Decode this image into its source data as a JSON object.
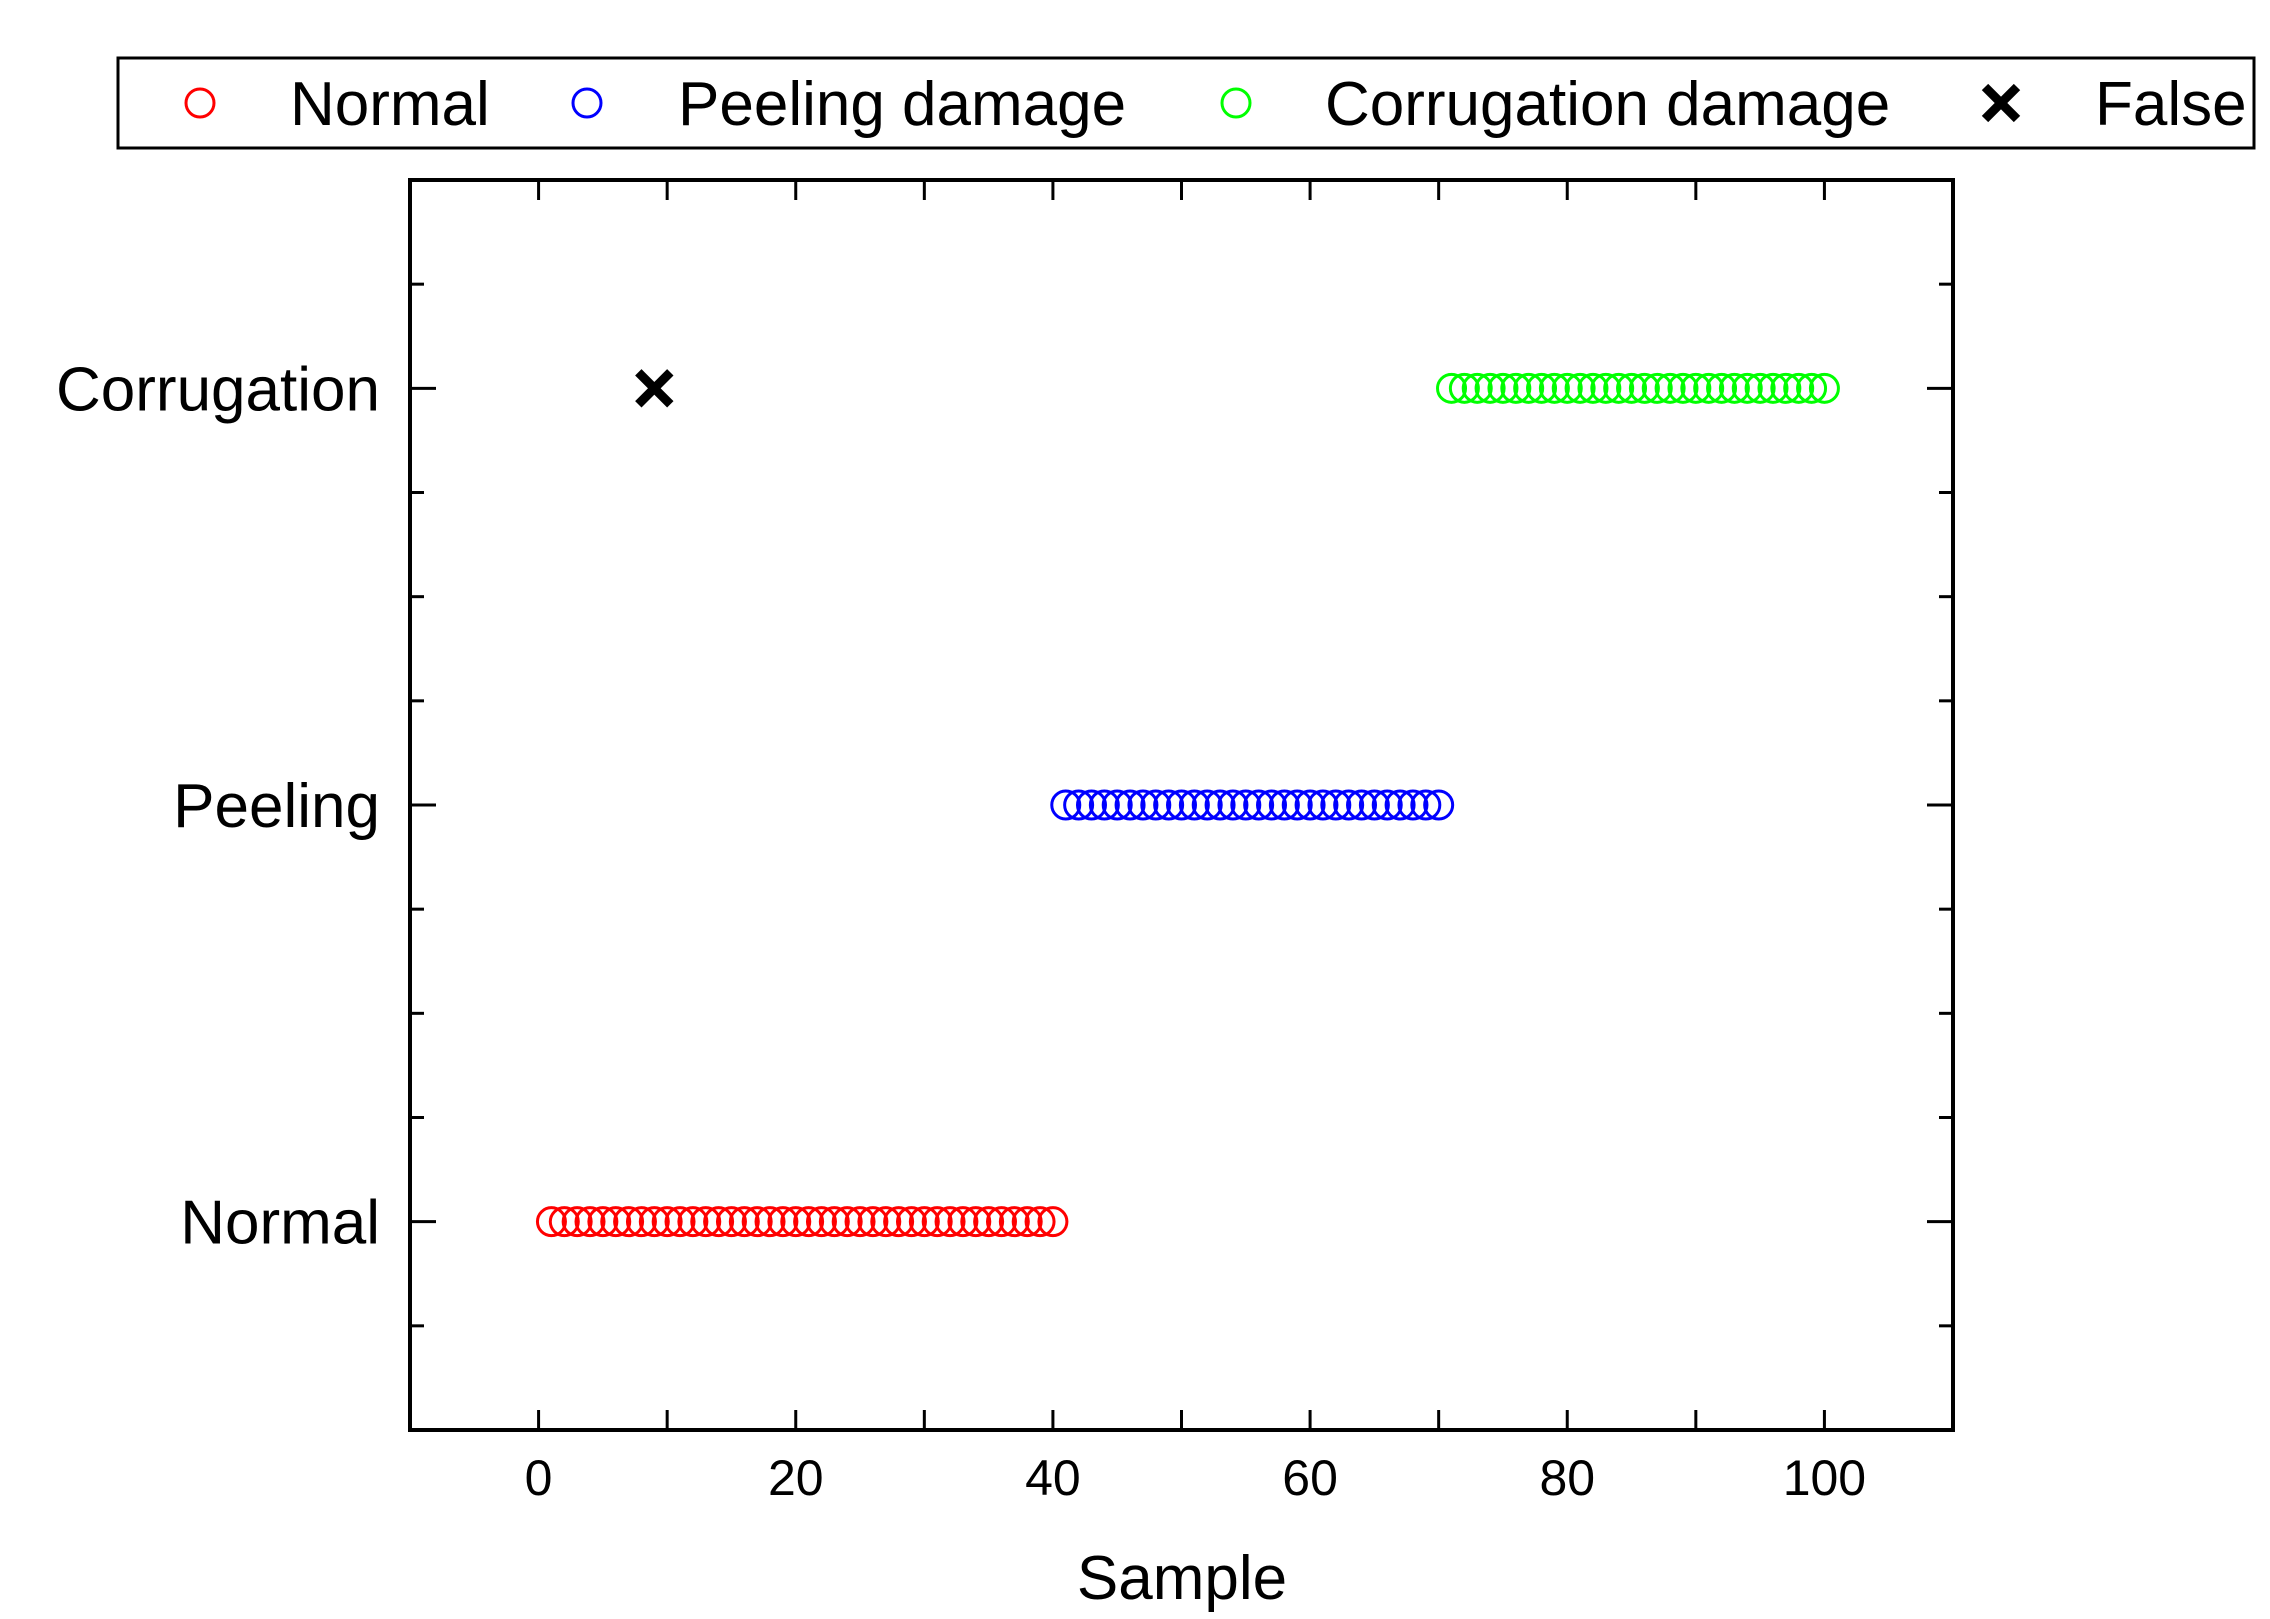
{
  "chart_data": {
    "type": "scatter",
    "title": "",
    "xlabel": "Sample",
    "ylabel": "",
    "xlim": [
      -10,
      110
    ],
    "ylim": [
      -0.5,
      2.5
    ],
    "x_ticks": [
      0,
      20,
      40,
      60,
      80,
      100
    ],
    "y_categories": [
      "Normal",
      "Peeling",
      "Corrugation"
    ],
    "legend_position": "top, outside plot",
    "series": [
      {
        "name": "Normal",
        "marker": "open-circle",
        "color": "#ff0000",
        "y": "Normal",
        "x": [
          1,
          2,
          3,
          4,
          5,
          6,
          7,
          8,
          9,
          10,
          11,
          12,
          13,
          14,
          15,
          16,
          17,
          18,
          19,
          20,
          21,
          22,
          23,
          24,
          25,
          26,
          27,
          28,
          29,
          30,
          31,
          32,
          33,
          34,
          35,
          36,
          37,
          38,
          39,
          40
        ]
      },
      {
        "name": "Peeling damage",
        "marker": "open-circle",
        "color": "#0000ff",
        "y": "Peeling",
        "x": [
          41,
          42,
          43,
          44,
          45,
          46,
          47,
          48,
          49,
          50,
          51,
          52,
          53,
          54,
          55,
          56,
          57,
          58,
          59,
          60,
          61,
          62,
          63,
          64,
          65,
          66,
          67,
          68,
          69,
          70
        ]
      },
      {
        "name": "Corrugation damage",
        "marker": "open-circle",
        "color": "#00ff00",
        "y": "Corrugation",
        "x": [
          71,
          72,
          73,
          74,
          75,
          76,
          77,
          78,
          79,
          80,
          81,
          82,
          83,
          84,
          85,
          86,
          87,
          88,
          89,
          90,
          91,
          92,
          93,
          94,
          95,
          96,
          97,
          98,
          99,
          100
        ]
      },
      {
        "name": "False",
        "marker": "x",
        "color": "#000000",
        "y": "Corrugation",
        "x": [
          9
        ]
      }
    ]
  }
}
